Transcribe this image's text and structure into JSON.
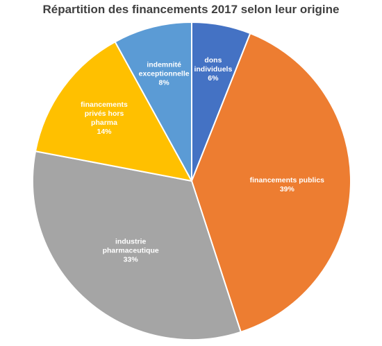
{
  "chart_data": {
    "type": "pie",
    "title": "Répartition des financements 2017 selon leur origine",
    "start_angle_deg": 0,
    "direction": "clockwise",
    "slices": [
      {
        "label": "dons individuels",
        "label_lines": [
          "dons",
          "individuels"
        ],
        "value": 6,
        "value_label": "6%",
        "color": "#4472C4"
      },
      {
        "label": "financements publics",
        "label_lines": [
          "financements publics"
        ],
        "value": 39,
        "value_label": "39%",
        "color": "#ED7D31"
      },
      {
        "label": "industrie pharmaceutique",
        "label_lines": [
          "industrie",
          "pharmaceutique"
        ],
        "value": 33,
        "value_label": "33%",
        "color": "#A5A5A5"
      },
      {
        "label": "financements privés hors pharma",
        "label_lines": [
          "financements",
          "privés hors",
          "pharma"
        ],
        "value": 14,
        "value_label": "14%",
        "color": "#FFC000"
      },
      {
        "label": "indemnité exceptionnelle",
        "label_lines": [
          "indemnité",
          "exceptionnelle"
        ],
        "value": 8,
        "value_label": "8%",
        "color": "#5B9BD5"
      }
    ],
    "legend": "none",
    "labels": "inside"
  }
}
